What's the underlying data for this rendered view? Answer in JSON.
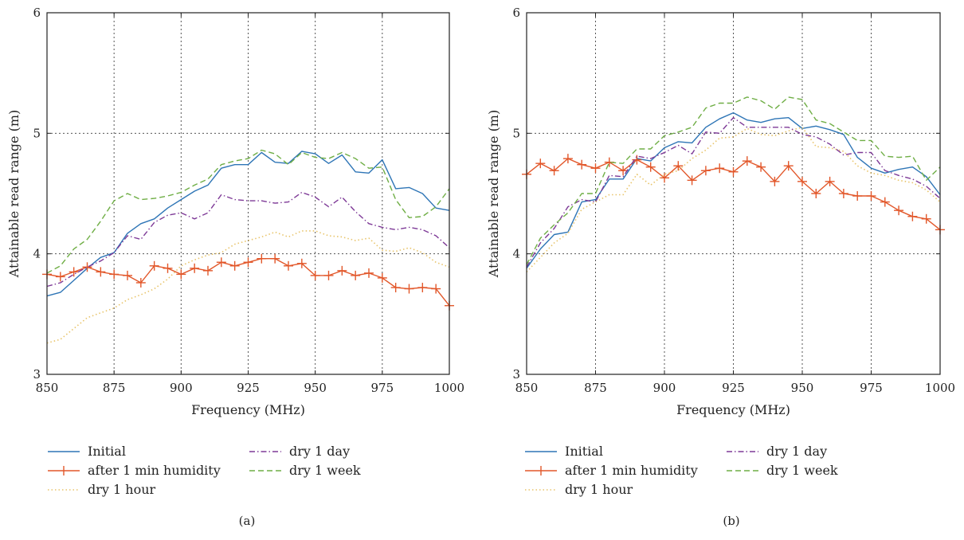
{
  "chart_data": [
    {
      "type": "line",
      "panel_label": "(a)",
      "xlabel": "Frequency (MHz)",
      "ylabel": "Attainable read range (m)",
      "xlim": [
        850,
        1000
      ],
      "ylim": [
        3,
        6
      ],
      "xticks": [
        850,
        875,
        900,
        925,
        950,
        975,
        1000
      ],
      "yticks": [
        3,
        4,
        5,
        6
      ],
      "grid": true,
      "legend_position": "below",
      "series": [
        {
          "name": "Initial",
          "style": "solid",
          "color": "#2e75b6",
          "x": [
            850,
            855,
            860,
            865,
            870,
            875,
            880,
            885,
            890,
            895,
            900,
            905,
            910,
            915,
            920,
            925,
            930,
            935,
            940,
            945,
            950,
            955,
            960,
            965,
            970,
            975,
            980,
            985,
            990,
            995,
            1000
          ],
          "y": [
            3.65,
            3.68,
            3.78,
            3.88,
            3.97,
            4.01,
            4.17,
            4.25,
            4.29,
            4.38,
            4.45,
            4.52,
            4.57,
            4.71,
            4.74,
            4.74,
            4.84,
            4.76,
            4.75,
            4.85,
            4.83,
            4.75,
            4.82,
            4.68,
            4.67,
            4.78,
            4.54,
            4.55,
            4.5,
            4.38,
            4.36
          ]
        },
        {
          "name": "after 1 min humidity",
          "style": "plus",
          "color": "#e2572a",
          "x": [
            850,
            855,
            860,
            865,
            870,
            875,
            880,
            885,
            890,
            895,
            900,
            905,
            910,
            915,
            920,
            925,
            930,
            935,
            940,
            945,
            950,
            955,
            960,
            965,
            970,
            975,
            980,
            985,
            990,
            995,
            1000
          ],
          "y": [
            3.83,
            3.81,
            3.85,
            3.89,
            3.85,
            3.83,
            3.82,
            3.76,
            3.9,
            3.88,
            3.83,
            3.88,
            3.86,
            3.93,
            3.9,
            3.93,
            3.96,
            3.96,
            3.9,
            3.92,
            3.82,
            3.82,
            3.86,
            3.82,
            3.84,
            3.8,
            3.72,
            3.71,
            3.72,
            3.71,
            3.57
          ]
        },
        {
          "name": "dry 1 hour",
          "style": "dotted",
          "color": "#e8c46a",
          "x": [
            850,
            855,
            860,
            865,
            870,
            875,
            880,
            885,
            890,
            895,
            900,
            905,
            910,
            915,
            920,
            925,
            930,
            935,
            940,
            945,
            950,
            955,
            960,
            965,
            970,
            975,
            980,
            985,
            990,
            995,
            1000
          ],
          "y": [
            3.26,
            3.29,
            3.38,
            3.47,
            3.51,
            3.55,
            3.62,
            3.66,
            3.71,
            3.79,
            3.9,
            3.95,
            3.99,
            4.01,
            4.08,
            4.11,
            4.14,
            4.18,
            4.14,
            4.19,
            4.19,
            4.15,
            4.14,
            4.11,
            4.13,
            4.03,
            4.02,
            4.05,
            4.01,
            3.93,
            3.89
          ]
        },
        {
          "name": "dry 1 day",
          "style": "dashdot",
          "color": "#7e3a97",
          "x": [
            850,
            855,
            860,
            865,
            870,
            875,
            880,
            885,
            890,
            895,
            900,
            905,
            910,
            915,
            920,
            925,
            930,
            935,
            940,
            945,
            950,
            955,
            960,
            965,
            970,
            975,
            980,
            985,
            990,
            995,
            1000
          ],
          "y": [
            3.73,
            3.76,
            3.83,
            3.89,
            3.94,
            4.01,
            4.15,
            4.12,
            4.26,
            4.32,
            4.34,
            4.29,
            4.34,
            4.49,
            4.45,
            4.44,
            4.44,
            4.42,
            4.43,
            4.51,
            4.47,
            4.39,
            4.47,
            4.35,
            4.25,
            4.22,
            4.2,
            4.22,
            4.2,
            4.15,
            4.05
          ]
        },
        {
          "name": "dry 1 week",
          "style": "dashed",
          "color": "#6fae45",
          "x": [
            850,
            855,
            860,
            865,
            870,
            875,
            880,
            885,
            890,
            895,
            900,
            905,
            910,
            915,
            920,
            925,
            930,
            935,
            940,
            945,
            950,
            955,
            960,
            965,
            970,
            975,
            980,
            985,
            990,
            995,
            1000
          ],
          "y": [
            3.84,
            3.9,
            4.04,
            4.12,
            4.27,
            4.44,
            4.5,
            4.45,
            4.46,
            4.48,
            4.51,
            4.57,
            4.62,
            4.74,
            4.77,
            4.79,
            4.86,
            4.83,
            4.74,
            4.84,
            4.8,
            4.79,
            4.84,
            4.79,
            4.71,
            4.72,
            4.45,
            4.3,
            4.31,
            4.39,
            4.54
          ]
        }
      ]
    },
    {
      "type": "line",
      "panel_label": "(b)",
      "xlabel": "Frequency (MHz)",
      "ylabel": "Attainable read range (m)",
      "xlim": [
        850,
        1000
      ],
      "ylim": [
        3,
        6
      ],
      "xticks": [
        850,
        875,
        900,
        925,
        950,
        975,
        1000
      ],
      "yticks": [
        3,
        4,
        5,
        6
      ],
      "grid": true,
      "legend_position": "below",
      "series": [
        {
          "name": "Initial",
          "style": "solid",
          "color": "#2e75b6",
          "x": [
            850,
            855,
            860,
            865,
            870,
            875,
            880,
            885,
            890,
            895,
            900,
            905,
            910,
            915,
            920,
            925,
            930,
            935,
            940,
            945,
            950,
            955,
            960,
            965,
            970,
            975,
            980,
            985,
            990,
            995,
            1000
          ],
          "y": [
            3.88,
            4.04,
            4.16,
            4.18,
            4.43,
            4.45,
            4.62,
            4.62,
            4.79,
            4.77,
            4.88,
            4.93,
            4.92,
            5.05,
            5.12,
            5.17,
            5.11,
            5.09,
            5.12,
            5.13,
            5.04,
            5.06,
            5.03,
            4.99,
            4.8,
            4.71,
            4.67,
            4.7,
            4.72,
            4.64,
            4.49
          ]
        },
        {
          "name": "after 1 min humidity",
          "style": "plus",
          "color": "#e2572a",
          "x": [
            850,
            855,
            860,
            865,
            870,
            875,
            880,
            885,
            890,
            895,
            900,
            905,
            910,
            915,
            920,
            925,
            930,
            935,
            940,
            945,
            950,
            955,
            960,
            965,
            970,
            975,
            980,
            985,
            990,
            995,
            1000
          ],
          "y": [
            4.66,
            4.75,
            4.69,
            4.79,
            4.74,
            4.71,
            4.76,
            4.69,
            4.78,
            4.72,
            4.63,
            4.73,
            4.61,
            4.69,
            4.71,
            4.68,
            4.77,
            4.72,
            4.6,
            4.73,
            4.6,
            4.5,
            4.6,
            4.5,
            4.48,
            4.48,
            4.43,
            4.36,
            4.31,
            4.29,
            4.2
          ]
        },
        {
          "name": "dry 1 hour",
          "style": "dotted",
          "color": "#e8c46a",
          "x": [
            850,
            855,
            860,
            865,
            870,
            875,
            880,
            885,
            890,
            895,
            900,
            905,
            910,
            915,
            920,
            925,
            930,
            935,
            940,
            945,
            950,
            955,
            960,
            965,
            970,
            975,
            980,
            985,
            990,
            995,
            1000
          ],
          "y": [
            3.85,
            3.97,
            4.09,
            4.17,
            4.37,
            4.43,
            4.49,
            4.49,
            4.66,
            4.57,
            4.66,
            4.69,
            4.79,
            4.86,
            4.96,
            4.97,
            5.04,
            4.99,
            4.98,
            5.02,
            5.05,
            4.89,
            4.88,
            4.85,
            4.73,
            4.67,
            4.65,
            4.61,
            4.59,
            4.53,
            4.43
          ]
        },
        {
          "name": "dry 1 day",
          "style": "dashdot",
          "color": "#7e3a97",
          "x": [
            850,
            855,
            860,
            865,
            870,
            875,
            880,
            885,
            890,
            895,
            900,
            905,
            910,
            915,
            920,
            925,
            930,
            935,
            940,
            945,
            950,
            955,
            960,
            965,
            970,
            975,
            980,
            985,
            990,
            995,
            1000
          ],
          "y": [
            3.89,
            4.09,
            4.21,
            4.39,
            4.45,
            4.43,
            4.65,
            4.64,
            4.81,
            4.79,
            4.84,
            4.9,
            4.83,
            5.01,
            5.0,
            5.13,
            5.05,
            5.05,
            5.05,
            5.05,
            4.99,
            4.97,
            4.91,
            4.82,
            4.84,
            4.84,
            4.69,
            4.65,
            4.62,
            4.56,
            4.46
          ]
        },
        {
          "name": "dry 1 week",
          "style": "dashed",
          "color": "#6fae45",
          "x": [
            850,
            855,
            860,
            865,
            870,
            875,
            880,
            885,
            890,
            895,
            900,
            905,
            910,
            915,
            920,
            925,
            930,
            935,
            940,
            945,
            950,
            955,
            960,
            965,
            970,
            975,
            980,
            985,
            990,
            995,
            1000
          ],
          "y": [
            3.91,
            4.13,
            4.24,
            4.34,
            4.5,
            4.5,
            4.76,
            4.75,
            4.87,
            4.87,
            4.98,
            5.01,
            5.05,
            5.21,
            5.25,
            5.25,
            5.3,
            5.27,
            5.2,
            5.3,
            5.28,
            5.11,
            5.08,
            5.01,
            4.94,
            4.94,
            4.81,
            4.8,
            4.81,
            4.61,
            4.72
          ]
        }
      ]
    }
  ]
}
